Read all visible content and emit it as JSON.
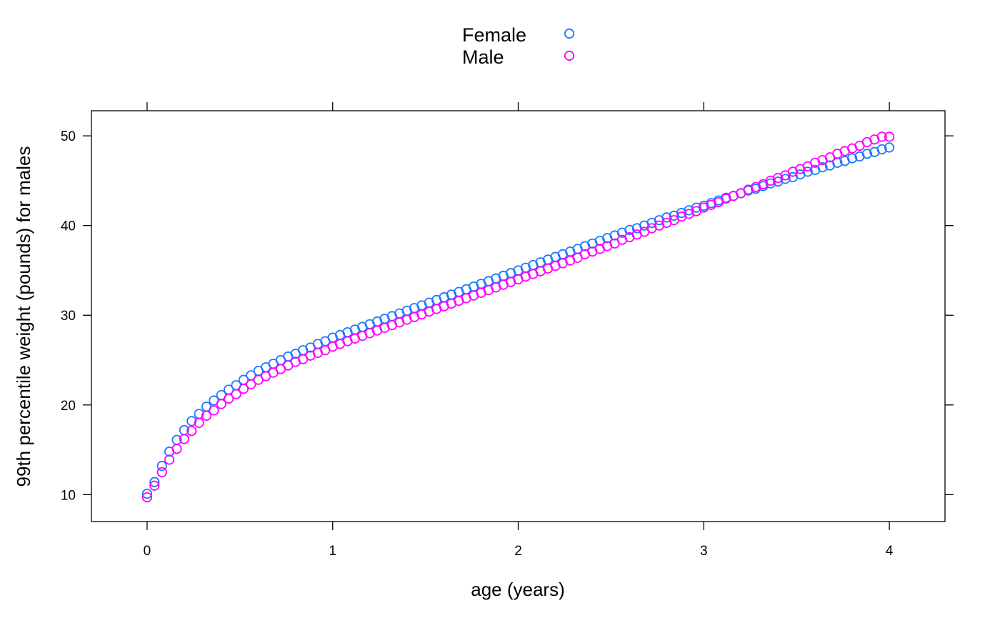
{
  "chart_data": {
    "type": "scatter",
    "title": "",
    "xlabel": "age (years)",
    "ylabel": "99th percentile weight (pounds) for males",
    "xlim": [
      -0.3,
      4.3
    ],
    "ylim": [
      7,
      52.8
    ],
    "x_ticks": [
      0,
      1,
      2,
      3,
      4
    ],
    "y_ticks": [
      10,
      20,
      30,
      40,
      50
    ],
    "x_tick_labels": [
      "0",
      "1",
      "2",
      "3",
      "4"
    ],
    "y_tick_labels": [
      "10",
      "20",
      "30",
      "40",
      "50"
    ],
    "grid": false,
    "legend_position": "top-center",
    "x_step": 0.04,
    "series": [
      {
        "name": "Female",
        "color": "#1f78ff",
        "marker": "open-circle",
        "points": [
          [
            0,
            10.1
          ],
          [
            0.04,
            11.4
          ],
          [
            0.08,
            13.2
          ],
          [
            0.12,
            14.8
          ],
          [
            0.16,
            16.1
          ],
          [
            0.2,
            17.2
          ],
          [
            0.24,
            18.2
          ],
          [
            0.28,
            19.0
          ],
          [
            0.32,
            19.8
          ],
          [
            0.36,
            20.5
          ],
          [
            0.4,
            21.1
          ],
          [
            0.44,
            21.7
          ],
          [
            0.48,
            22.2
          ],
          [
            0.52,
            22.8
          ],
          [
            0.56,
            23.3
          ],
          [
            0.6,
            23.8
          ],
          [
            0.64,
            24.2
          ],
          [
            0.68,
            24.6
          ],
          [
            0.72,
            25.0
          ],
          [
            0.76,
            25.4
          ],
          [
            0.8,
            25.7
          ],
          [
            0.84,
            26.1
          ],
          [
            0.88,
            26.4
          ],
          [
            0.92,
            26.8
          ],
          [
            0.96,
            27.1
          ],
          [
            1.0,
            27.5
          ],
          [
            1.04,
            27.8
          ],
          [
            1.08,
            28.1
          ],
          [
            1.12,
            28.4
          ],
          [
            1.16,
            28.7
          ],
          [
            1.2,
            29.0
          ],
          [
            1.24,
            29.3
          ],
          [
            1.28,
            29.6
          ],
          [
            1.32,
            29.9
          ],
          [
            1.36,
            30.2
          ],
          [
            1.4,
            30.5
          ],
          [
            1.44,
            30.8
          ],
          [
            1.48,
            31.1
          ],
          [
            1.52,
            31.4
          ],
          [
            1.56,
            31.7
          ],
          [
            1.6,
            32.0
          ],
          [
            1.64,
            32.3
          ],
          [
            1.68,
            32.6
          ],
          [
            1.72,
            32.9
          ],
          [
            1.76,
            33.2
          ],
          [
            1.8,
            33.5
          ],
          [
            1.84,
            33.8
          ],
          [
            1.88,
            34.1
          ],
          [
            1.92,
            34.4
          ],
          [
            1.96,
            34.7
          ],
          [
            2.0,
            35.0
          ],
          [
            2.04,
            35.3
          ],
          [
            2.08,
            35.6
          ],
          [
            2.12,
            35.9
          ],
          [
            2.16,
            36.2
          ],
          [
            2.2,
            36.5
          ],
          [
            2.24,
            36.8
          ],
          [
            2.28,
            37.1
          ],
          [
            2.32,
            37.4
          ],
          [
            2.36,
            37.7
          ],
          [
            2.4,
            38.0
          ],
          [
            2.44,
            38.3
          ],
          [
            2.48,
            38.6
          ],
          [
            2.52,
            38.9
          ],
          [
            2.56,
            39.2
          ],
          [
            2.6,
            39.5
          ],
          [
            2.64,
            39.7
          ],
          [
            2.68,
            40.0
          ],
          [
            2.72,
            40.3
          ],
          [
            2.76,
            40.6
          ],
          [
            2.8,
            40.9
          ],
          [
            2.84,
            41.1
          ],
          [
            2.88,
            41.4
          ],
          [
            2.92,
            41.7
          ],
          [
            2.96,
            42.0
          ],
          [
            3.0,
            42.2
          ],
          [
            3.04,
            42.5
          ],
          [
            3.08,
            42.8
          ],
          [
            3.12,
            43.1
          ],
          [
            3.16,
            43.3
          ],
          [
            3.2,
            43.6
          ],
          [
            3.24,
            43.9
          ],
          [
            3.28,
            44.1
          ],
          [
            3.32,
            44.4
          ],
          [
            3.36,
            44.7
          ],
          [
            3.4,
            44.9
          ],
          [
            3.44,
            45.2
          ],
          [
            3.48,
            45.4
          ],
          [
            3.52,
            45.7
          ],
          [
            3.56,
            46.0
          ],
          [
            3.6,
            46.2
          ],
          [
            3.64,
            46.5
          ],
          [
            3.68,
            46.7
          ],
          [
            3.72,
            47.0
          ],
          [
            3.76,
            47.2
          ],
          [
            3.8,
            47.5
          ],
          [
            3.84,
            47.7
          ],
          [
            3.88,
            48.0
          ],
          [
            3.92,
            48.2
          ],
          [
            3.96,
            48.5
          ],
          [
            4.0,
            48.7
          ]
        ]
      },
      {
        "name": "Male",
        "color": "#ff00ff",
        "marker": "open-circle",
        "points": [
          [
            0,
            9.7
          ],
          [
            0.04,
            11.0
          ],
          [
            0.08,
            12.5
          ],
          [
            0.12,
            13.9
          ],
          [
            0.16,
            15.1
          ],
          [
            0.2,
            16.2
          ],
          [
            0.24,
            17.1
          ],
          [
            0.28,
            18.0
          ],
          [
            0.32,
            18.8
          ],
          [
            0.36,
            19.4
          ],
          [
            0.4,
            20.1
          ],
          [
            0.44,
            20.7
          ],
          [
            0.48,
            21.2
          ],
          [
            0.52,
            21.8
          ],
          [
            0.56,
            22.3
          ],
          [
            0.6,
            22.8
          ],
          [
            0.64,
            23.2
          ],
          [
            0.68,
            23.6
          ],
          [
            0.72,
            24.0
          ],
          [
            0.76,
            24.4
          ],
          [
            0.8,
            24.8
          ],
          [
            0.84,
            25.1
          ],
          [
            0.88,
            25.5
          ],
          [
            0.92,
            25.8
          ],
          [
            0.96,
            26.1
          ],
          [
            1.0,
            26.5
          ],
          [
            1.04,
            26.8
          ],
          [
            1.08,
            27.1
          ],
          [
            1.12,
            27.4
          ],
          [
            1.16,
            27.7
          ],
          [
            1.2,
            28.0
          ],
          [
            1.24,
            28.3
          ],
          [
            1.28,
            28.6
          ],
          [
            1.32,
            28.9
          ],
          [
            1.36,
            29.2
          ],
          [
            1.4,
            29.5
          ],
          [
            1.44,
            29.8
          ],
          [
            1.48,
            30.1
          ],
          [
            1.52,
            30.4
          ],
          [
            1.56,
            30.7
          ],
          [
            1.6,
            31.0
          ],
          [
            1.64,
            31.3
          ],
          [
            1.68,
            31.6
          ],
          [
            1.72,
            31.9
          ],
          [
            1.76,
            32.2
          ],
          [
            1.8,
            32.5
          ],
          [
            1.84,
            32.8
          ],
          [
            1.88,
            33.1
          ],
          [
            1.92,
            33.4
          ],
          [
            1.96,
            33.7
          ],
          [
            2.0,
            34.0
          ],
          [
            2.04,
            34.3
          ],
          [
            2.08,
            34.6
          ],
          [
            2.12,
            34.9
          ],
          [
            2.16,
            35.2
          ],
          [
            2.2,
            35.5
          ],
          [
            2.24,
            35.8
          ],
          [
            2.28,
            36.1
          ],
          [
            2.32,
            36.4
          ],
          [
            2.36,
            36.8
          ],
          [
            2.4,
            37.1
          ],
          [
            2.44,
            37.4
          ],
          [
            2.48,
            37.7
          ],
          [
            2.52,
            38.0
          ],
          [
            2.56,
            38.4
          ],
          [
            2.6,
            38.7
          ],
          [
            2.64,
            39.0
          ],
          [
            2.68,
            39.3
          ],
          [
            2.72,
            39.7
          ],
          [
            2.76,
            40.0
          ],
          [
            2.8,
            40.3
          ],
          [
            2.84,
            40.6
          ],
          [
            2.88,
            41.0
          ],
          [
            2.92,
            41.3
          ],
          [
            2.96,
            41.6
          ],
          [
            3.0,
            42.0
          ],
          [
            3.04,
            42.3
          ],
          [
            3.08,
            42.6
          ],
          [
            3.12,
            43.0
          ],
          [
            3.16,
            43.3
          ],
          [
            3.2,
            43.6
          ],
          [
            3.24,
            44.0
          ],
          [
            3.28,
            44.3
          ],
          [
            3.32,
            44.6
          ],
          [
            3.36,
            45.0
          ],
          [
            3.4,
            45.3
          ],
          [
            3.44,
            45.6
          ],
          [
            3.48,
            46.0
          ],
          [
            3.52,
            46.3
          ],
          [
            3.56,
            46.6
          ],
          [
            3.6,
            47.0
          ],
          [
            3.64,
            47.3
          ],
          [
            3.68,
            47.6
          ],
          [
            3.72,
            48.0
          ],
          [
            3.76,
            48.3
          ],
          [
            3.8,
            48.6
          ],
          [
            3.84,
            48.9
          ],
          [
            3.88,
            49.3
          ],
          [
            3.92,
            49.6
          ],
          [
            3.96,
            49.9
          ],
          [
            4.0,
            49.9
          ]
        ]
      }
    ]
  }
}
